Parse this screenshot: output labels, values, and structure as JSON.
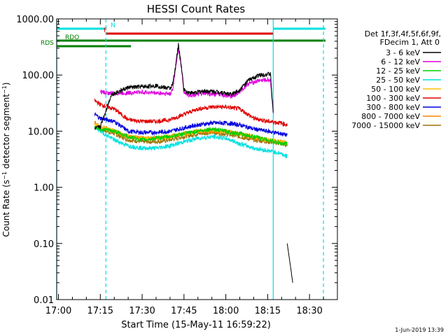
{
  "chart_data": {
    "type": "line",
    "title": "HESSI Count Rates",
    "xlabel": "Start Time (15-May-11 16:59:22)",
    "ylabel": "Count Rate (s⁻¹ detector segment⁻¹)",
    "y_scale": "log",
    "ylim": [
      0.01,
      1000
    ],
    "xlim": [
      "16:59:22",
      "18:40:00"
    ],
    "x_ticks": [
      "17:00",
      "17:15",
      "17:30",
      "17:45",
      "18:00",
      "18:15",
      "18:30"
    ],
    "y_ticks": [
      "0.01",
      "0.10",
      "1.00",
      "10.00",
      "100.00",
      "1000.00"
    ],
    "legend_title": [
      "Det 1f,3f,4f,5f,6f,9f,",
      "FDecim 1, Att 0"
    ],
    "legend_position": "right",
    "series": [
      {
        "name": "3 - 6 keV",
        "color": "#000000",
        "x": [
          "17:13",
          "17:15",
          "17:19",
          "17:25",
          "17:30",
          "17:35",
          "17:38",
          "17:40",
          "17:41",
          "17:42",
          "17:43",
          "17:44",
          "17:45",
          "17:46",
          "17:48",
          "17:52",
          "17:58",
          "18:02",
          "18:05",
          "18:08",
          "18:12",
          "18:16",
          "18:17",
          "18:20",
          "18:22",
          "18:24"
        ],
        "y": [
          11,
          12,
          45,
          60,
          62,
          65,
          60,
          58,
          70,
          150,
          350,
          150,
          55,
          50,
          48,
          52,
          50,
          45,
          55,
          80,
          100,
          105,
          20,
          null,
          0.1,
          0.02
        ]
      },
      {
        "name": "6 - 12 keV",
        "color": "#e000e0",
        "x": [
          "17:15",
          "17:19",
          "17:25",
          "17:30",
          "17:35",
          "17:38",
          "17:40",
          "17:41",
          "17:42",
          "17:43",
          "17:44",
          "17:45",
          "17:46",
          "17:48",
          "17:52",
          "17:58",
          "18:02",
          "18:05",
          "18:08",
          "18:12",
          "18:16",
          "18:17"
        ],
        "y": [
          50,
          47,
          48,
          50,
          48,
          47,
          46,
          55,
          140,
          300,
          140,
          50,
          45,
          44,
          47,
          45,
          42,
          50,
          70,
          80,
          82,
          20
        ]
      },
      {
        "name": "12 - 25 keV",
        "color": "#00d000",
        "x": [
          "17:13",
          "17:15",
          "17:20",
          "17:25",
          "17:30",
          "17:35",
          "17:40",
          "17:45",
          "17:50",
          "17:55",
          "18:00",
          "18:05",
          "18:10",
          "18:15",
          "18:20",
          "18:22"
        ],
        "y": [
          12,
          11,
          10,
          8,
          7,
          7.5,
          8,
          9,
          10,
          11,
          10,
          9,
          8,
          7,
          6,
          6
        ]
      },
      {
        "name": "25 - 50 keV",
        "color": "#00e0e0",
        "x": [
          "17:13",
          "17:15",
          "17:20",
          "17:25",
          "17:30",
          "17:35",
          "17:40",
          "17:45",
          "17:50",
          "17:55",
          "18:00",
          "18:05",
          "18:10",
          "18:15",
          "18:20",
          "18:22"
        ],
        "y": [
          12,
          10,
          7,
          5.5,
          5,
          5,
          5.5,
          6.5,
          7.5,
          8,
          7.5,
          6,
          5,
          4.5,
          4,
          3.5
        ]
      },
      {
        "name": "50 - 100 keV",
        "color": "#ffc000",
        "x": [
          "17:13",
          "17:15",
          "17:20",
          "17:25",
          "17:30",
          "17:35",
          "17:40",
          "17:45",
          "17:50",
          "17:55",
          "18:00",
          "18:05",
          "18:10",
          "18:15",
          "18:20",
          "18:22"
        ],
        "y": [
          13,
          12,
          10,
          8,
          7.5,
          7.5,
          8,
          9,
          10,
          10.5,
          10,
          9,
          8,
          7,
          6.5,
          6
        ]
      },
      {
        "name": "100 - 300 keV",
        "color": "#e00000",
        "x": [
          "17:13",
          "17:15",
          "17:20",
          "17:25",
          "17:30",
          "17:35",
          "17:40",
          "17:45",
          "17:50",
          "17:55",
          "18:00",
          "18:05",
          "18:10",
          "18:15",
          "18:20",
          "18:22"
        ],
        "y": [
          35,
          30,
          25,
          16,
          15,
          15,
          16,
          20,
          25,
          27,
          27,
          25,
          17,
          15,
          14,
          13
        ]
      },
      {
        "name": "300 - 800 keV",
        "color": "#0000e0",
        "x": [
          "17:13",
          "17:15",
          "17:20",
          "17:25",
          "17:30",
          "17:35",
          "17:40",
          "17:45",
          "17:50",
          "17:55",
          "18:00",
          "18:05",
          "18:10",
          "18:15",
          "18:20",
          "18:22"
        ],
        "y": [
          20,
          17,
          15,
          10,
          9.5,
          9.5,
          10,
          11.5,
          13,
          14,
          14,
          13,
          11,
          10,
          9,
          8.5
        ]
      },
      {
        "name": "800 - 7000 keV",
        "color": "#ff8000",
        "x": [
          "17:13",
          "17:15",
          "17:20",
          "17:25",
          "17:30",
          "17:35",
          "17:40",
          "17:45",
          "17:50",
          "17:55",
          "18:00",
          "18:05",
          "18:10",
          "18:15",
          "18:20",
          "18:22"
        ],
        "y": [
          14,
          12,
          10,
          8,
          7.5,
          7.5,
          8,
          9,
          10,
          10,
          10,
          9,
          7.5,
          7,
          6.5,
          6
        ]
      },
      {
        "name": "7000 - 15000 keV",
        "color": "#a07000",
        "x": [
          "17:13",
          "17:15",
          "17:20",
          "17:25",
          "17:30",
          "17:35",
          "17:40",
          "17:45",
          "17:50",
          "17:55",
          "18:00",
          "18:05",
          "18:10",
          "18:15",
          "18:20",
          "18:22"
        ],
        "y": [
          12,
          11,
          9,
          7,
          6.5,
          6.5,
          7,
          8,
          9,
          9.5,
          9,
          8,
          7,
          6.5,
          6,
          5.5
        ]
      }
    ],
    "flag_bars": [
      {
        "label": "N",
        "color": "#00e0e0",
        "segments": [
          [
            "16:59:22",
            "17:17"
          ],
          [
            "18:17",
            "18:40"
          ]
        ]
      },
      {
        "label": "F",
        "color": "#e00000",
        "segments": [
          [
            "17:17",
            "18:17"
          ]
        ]
      },
      {
        "label": "RDO",
        "color": "#008000",
        "segments": [
          [
            "16:59:22",
            "17:17"
          ],
          [
            "17:26",
            "17:48"
          ],
          [
            "17:48",
            "18:03"
          ],
          [
            "18:03",
            "18:40"
          ]
        ]
      },
      {
        "label": "RDS",
        "color": "#008000",
        "segments": [
          [
            "16:59:22",
            "17:26"
          ]
        ]
      }
    ],
    "vlines": [
      {
        "x": "16:59:22",
        "color": "#00e0e0",
        "style": "solid"
      },
      {
        "x": "17:17",
        "color": "#00e0e0",
        "style": "dashed"
      },
      {
        "x": "18:17",
        "color": "#00e0e0",
        "style": "solid"
      },
      {
        "x": "18:35",
        "color": "#00e0e0",
        "style": "dashed"
      }
    ],
    "grid": false
  },
  "footer": {
    "date_stamp": "1-Jun-2019 13:39"
  }
}
